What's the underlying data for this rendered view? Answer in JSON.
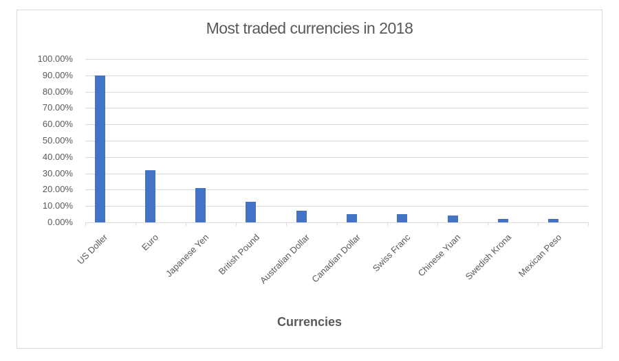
{
  "chart": {
    "title": "Most traded currencies in 2018",
    "x_axis_title": "Currencies",
    "y_ticks": [
      "100.00%",
      "90.00%",
      "80.00%",
      "70.00%",
      "60.00%",
      "50.00%",
      "40.00%",
      "30.00%",
      "20.00%",
      "10.00%",
      "0.00%"
    ],
    "bar_color": "#4472c4",
    "categories": [
      "US Doller",
      "Euro",
      "Japanese Yen",
      "British Pound",
      "Australian Dollar",
      "Canadian Dollar",
      "Swiss Franc",
      "Chinese Yuan",
      "Swedish Krona",
      "Mexican Peso"
    ]
  },
  "chart_data": {
    "type": "bar",
    "title": "Most traded currencies in 2018",
    "xlabel": "Currencies",
    "ylabel": "",
    "categories": [
      "US Doller",
      "Euro",
      "Japanese Yen",
      "British Pound",
      "Australian Dollar",
      "Canadian Dollar",
      "Swiss Franc",
      "Chinese Yuan",
      "Swedish Krona",
      "Mexican Peso"
    ],
    "values": [
      0.9,
      0.32,
      0.21,
      0.125,
      0.07,
      0.05,
      0.05,
      0.04,
      0.02,
      0.02
    ],
    "value_format": "percent",
    "ylim": [
      0,
      1.0
    ],
    "y_tick_step": 0.1,
    "grid": true,
    "legend": "none",
    "x_label_rotation": -45
  }
}
